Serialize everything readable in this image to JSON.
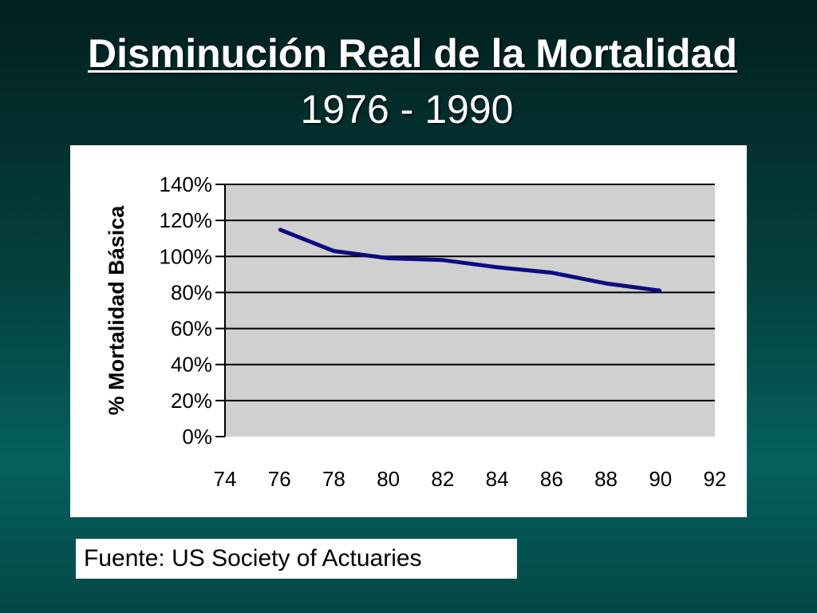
{
  "title": "Disminución Real de la Mortalidad",
  "subtitle": "1976 - 1990",
  "source": "Fuente: US Society of Actuaries",
  "colors": {
    "plot_background": "#d0d0d0",
    "line": "#0c0c80",
    "gridline": "#000000",
    "panel": "#ffffff"
  },
  "chart_data": {
    "type": "line",
    "title": "",
    "xlabel": "",
    "ylabel": "% Mortalidad Básica",
    "xlim": [
      74,
      92
    ],
    "ylim": [
      0,
      140
    ],
    "x_ticks": [
      "74",
      "76",
      "78",
      "80",
      "82",
      "84",
      "86",
      "88",
      "90",
      "92"
    ],
    "y_ticks": [
      "0%",
      "20%",
      "40%",
      "60%",
      "80%",
      "100%",
      "120%",
      "140%"
    ],
    "grid": true,
    "legend": "none",
    "series": [
      {
        "x": [
          76,
          78,
          80,
          82,
          84,
          86,
          88,
          90
        ],
        "y": [
          115,
          103,
          99,
          98,
          94,
          91,
          85,
          81
        ]
      }
    ]
  }
}
